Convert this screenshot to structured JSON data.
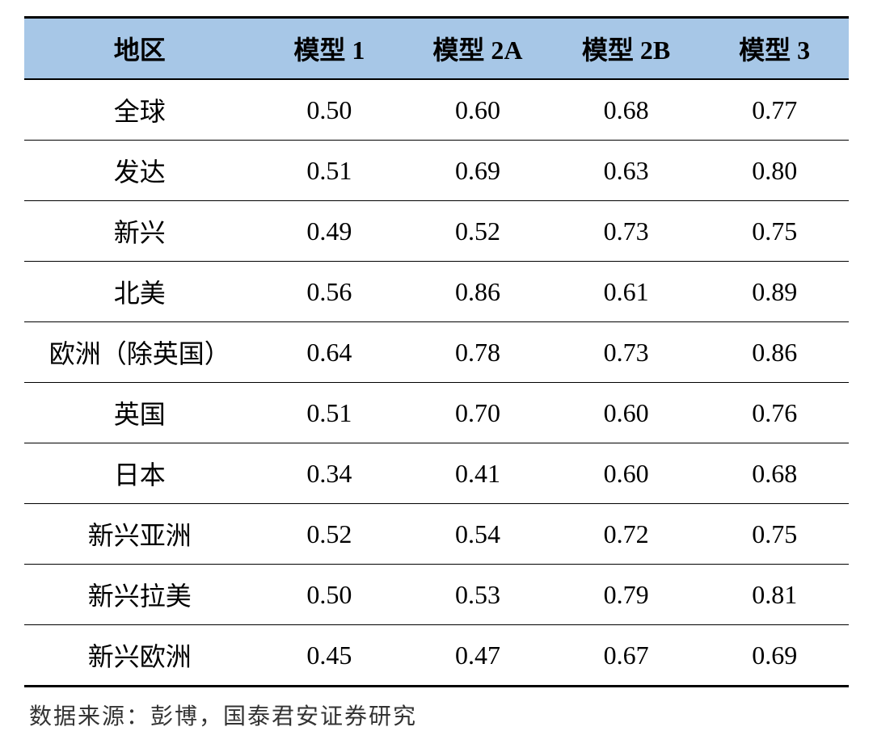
{
  "table": {
    "type": "table",
    "header_bg": "#a7c7e7",
    "border_color": "#000000",
    "text_color": "#000000",
    "font_size": 32,
    "header_font_weight": "bold",
    "top_border_width": 3,
    "header_bottom_border_width": 2,
    "row_border_width": 1,
    "bottom_border_width": 3,
    "columns": [
      {
        "label": "地区",
        "width_pct": 28,
        "align": "center"
      },
      {
        "label": "模型 1",
        "width_pct": 18,
        "align": "center"
      },
      {
        "label": "模型 2A",
        "width_pct": 18,
        "align": "center"
      },
      {
        "label": "模型 2B",
        "width_pct": 18,
        "align": "center"
      },
      {
        "label": "模型 3",
        "width_pct": 18,
        "align": "center"
      }
    ],
    "rows": [
      {
        "region": "全球",
        "m1": "0.50",
        "m2a": "0.60",
        "m2b": "0.68",
        "m3": "0.77"
      },
      {
        "region": "发达",
        "m1": "0.51",
        "m2a": "0.69",
        "m2b": "0.63",
        "m3": "0.80"
      },
      {
        "region": "新兴",
        "m1": "0.49",
        "m2a": "0.52",
        "m2b": "0.73",
        "m3": "0.75"
      },
      {
        "region": "北美",
        "m1": "0.56",
        "m2a": "0.86",
        "m2b": "0.61",
        "m3": "0.89"
      },
      {
        "region": "欧洲（除英国）",
        "m1": "0.64",
        "m2a": "0.78",
        "m2b": "0.73",
        "m3": "0.86"
      },
      {
        "region": "英国",
        "m1": "0.51",
        "m2a": "0.70",
        "m2b": "0.60",
        "m3": "0.76"
      },
      {
        "region": "日本",
        "m1": "0.34",
        "m2a": "0.41",
        "m2b": "0.60",
        "m3": "0.68"
      },
      {
        "region": "新兴亚洲",
        "m1": "0.52",
        "m2a": "0.54",
        "m2b": "0.72",
        "m3": "0.75"
      },
      {
        "region": "新兴拉美",
        "m1": "0.50",
        "m2a": "0.53",
        "m2b": "0.79",
        "m3": "0.81"
      },
      {
        "region": "新兴欧洲",
        "m1": "0.45",
        "m2a": "0.47",
        "m2b": "0.67",
        "m3": "0.69"
      }
    ]
  },
  "footnote": "数据来源：彭博，国泰君安证券研究"
}
